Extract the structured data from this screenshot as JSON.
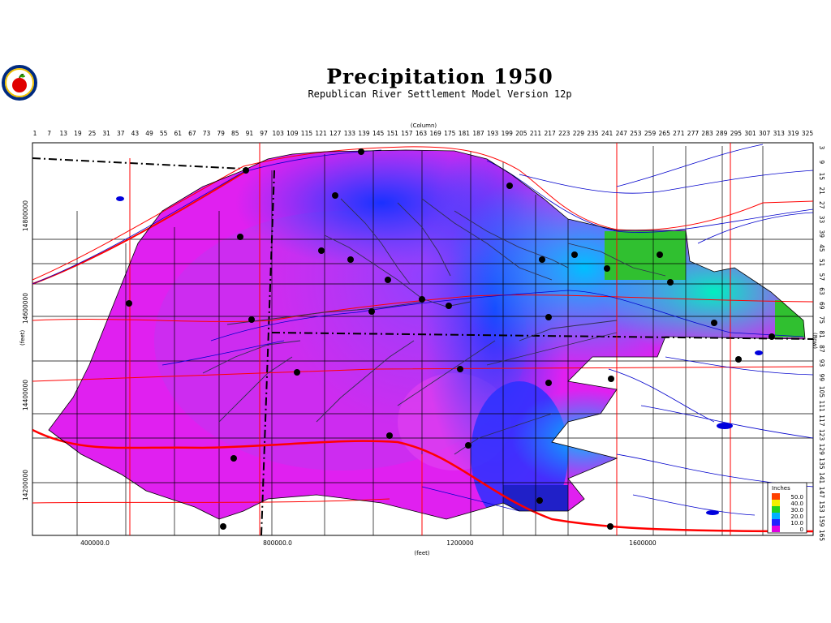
{
  "title": "Precipitation 1950",
  "subtitle": "Republican River Settlement Model Version 12p",
  "logo_icon": "apple-logo-icon",
  "axes": {
    "column_label": "(Column)",
    "row_label": "(Row)",
    "y_label": "(feet)",
    "x_label": "(feet)",
    "column_ticks": [
      "1",
      "7",
      "13",
      "19",
      "25",
      "31",
      "37",
      "43",
      "49",
      "55",
      "61",
      "67",
      "73",
      "79",
      "85",
      "91",
      "97",
      "103",
      "109",
      "115",
      "121",
      "127",
      "133",
      "139",
      "145",
      "151",
      "157",
      "163",
      "169",
      "175",
      "181",
      "187",
      "193",
      "199",
      "205",
      "211",
      "217",
      "223",
      "229",
      "235",
      "241",
      "247",
      "253",
      "259",
      "265",
      "271",
      "277",
      "283",
      "289",
      "295",
      "301",
      "307",
      "313",
      "319",
      "325"
    ],
    "row_ticks": [
      "3",
      "9",
      "15",
      "21",
      "27",
      "33",
      "39",
      "45",
      "51",
      "57",
      "63",
      "69",
      "75",
      "81",
      "87",
      "93",
      "99",
      "105",
      "111",
      "117",
      "123",
      "129",
      "135",
      "141",
      "147",
      "153",
      "159",
      "165"
    ],
    "x_ticks": [
      "400000.0",
      "800000.0",
      "1200000",
      "1600000"
    ],
    "y_ticks": [
      "14800000",
      "14600000",
      "14400000",
      "14200000"
    ]
  },
  "legend": {
    "title": "Inches",
    "items": [
      {
        "label": "50.0",
        "color": "#ff4000"
      },
      {
        "label": "40.0",
        "color": "#f0f000"
      },
      {
        "label": "30.0",
        "color": "#20d020"
      },
      {
        "label": "20.0",
        "color": "#00b0ff"
      },
      {
        "label": "10.0",
        "color": "#2020ff"
      },
      {
        "label": "0",
        "color": "#e000e0"
      }
    ]
  },
  "colors": {
    "magenta": "#e020f0",
    "purple": "#b030f0",
    "violet": "#8040ff",
    "blue": "#2040ff",
    "sky": "#00a8ff",
    "cyan": "#00e0d0",
    "green": "#30c030",
    "road": "#ff0000",
    "river": "#0000cc",
    "county": "#000000"
  }
}
